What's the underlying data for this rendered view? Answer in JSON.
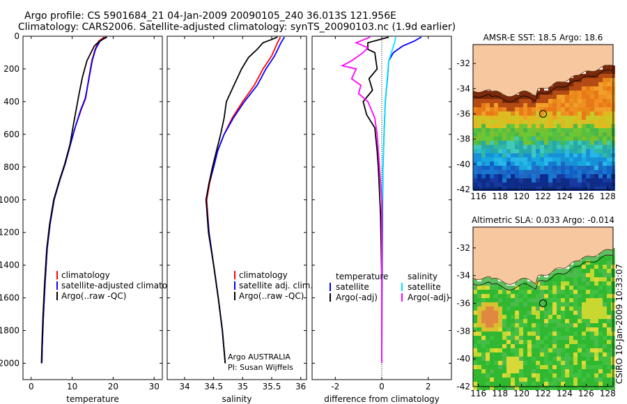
{
  "header": {
    "line1": "Argo profile: CS 5901684_21 04-Jan-2009 20090105_240 36.013S 121.956E",
    "line2": "Climatology: CARS2006. Satellite-adjusted climatology: synTS_20090103.nc (1.9d earlier)"
  },
  "colors": {
    "climatology": "#ff0000",
    "satellite": "#0000ff",
    "argo": "#000000",
    "satellite_sal_diff": "#00e5ff",
    "argo_sal_diff": "#ff00ff",
    "land": "#f7c8a0"
  },
  "chart_data": [
    {
      "type": "line",
      "panel": "temperature",
      "xlabel": "temperature",
      "xlim": [
        -2,
        32
      ],
      "ylim": [
        0,
        2100
      ],
      "y_reversed": true,
      "xticks": [
        "0",
        "10",
        "20",
        "30"
      ],
      "yticks": [
        "0",
        "200",
        "400",
        "600",
        "800",
        "1000",
        "1200",
        "1400",
        "1600",
        "1800",
        "2000"
      ],
      "legend_position": "lower-right",
      "series": [
        {
          "name": "climatology",
          "color": "#ff0000",
          "points": [
            [
              17.8,
              5
            ],
            [
              16.5,
              30
            ],
            [
              15.6,
              80
            ],
            [
              14.8,
              150
            ],
            [
              14.1,
              250
            ],
            [
              13.3,
              380
            ],
            [
              12.2,
              450
            ],
            [
              10.7,
              560
            ],
            [
              9.6,
              660
            ],
            [
              8.3,
              780
            ],
            [
              7.0,
              880
            ],
            [
              5.6,
              1000
            ],
            [
              4.6,
              1150
            ],
            [
              3.9,
              1300
            ],
            [
              3.4,
              1500
            ],
            [
              3.0,
              1700
            ],
            [
              2.7,
              1900
            ],
            [
              2.6,
              2000
            ]
          ]
        },
        {
          "name": "satellite-adjusted climatology",
          "color": "#0000ff",
          "points": [
            [
              18.2,
              5
            ],
            [
              16.8,
              30
            ],
            [
              15.7,
              80
            ],
            [
              14.9,
              150
            ],
            [
              14.1,
              260
            ],
            [
              13.2,
              380
            ],
            [
              12.1,
              450
            ],
            [
              10.7,
              560
            ],
            [
              9.6,
              660
            ],
            [
              8.3,
              780
            ],
            [
              7.0,
              880
            ],
            [
              5.6,
              1000
            ],
            [
              4.6,
              1150
            ],
            [
              3.9,
              1300
            ],
            [
              3.4,
              1500
            ],
            [
              3.0,
              1700
            ],
            [
              2.7,
              1900
            ],
            [
              2.6,
              2000
            ]
          ]
        },
        {
          "name": "Argo(..raw -QC)",
          "color": "#000000",
          "points": [
            [
              18.5,
              5
            ],
            [
              17.4,
              20
            ],
            [
              16.2,
              40
            ],
            [
              15.4,
              60
            ],
            [
              14.6,
              100
            ],
            [
              13.6,
              150
            ],
            [
              12.5,
              250
            ],
            [
              11.7,
              350
            ],
            [
              11.2,
              420
            ],
            [
              10.3,
              540
            ],
            [
              9.5,
              660
            ],
            [
              8.2,
              780
            ],
            [
              6.9,
              880
            ],
            [
              5.5,
              1000
            ],
            [
              4.5,
              1150
            ],
            [
              3.8,
              1300
            ],
            [
              3.3,
              1500
            ],
            [
              2.9,
              1700
            ],
            [
              2.6,
              1900
            ],
            [
              2.5,
              2000
            ]
          ]
        }
      ],
      "legend_labels": [
        "climatology",
        "satellite-adjusted climatology",
        "Argo(..raw -QC)"
      ]
    },
    {
      "type": "line",
      "panel": "salinity",
      "xlabel": "salinity",
      "xlim": [
        33.7,
        36.1
      ],
      "ylim": [
        0,
        2100
      ],
      "y_reversed": true,
      "xticks": [
        "34",
        "34.5",
        "35",
        "35.5",
        "36"
      ],
      "legend_position": "lower-right",
      "series": [
        {
          "name": "climatology",
          "color": "#ff0000",
          "points": [
            [
              35.65,
              5
            ],
            [
              35.6,
              40
            ],
            [
              35.5,
              120
            ],
            [
              35.35,
              200
            ],
            [
              35.2,
              300
            ],
            [
              35.0,
              400
            ],
            [
              34.82,
              500
            ],
            [
              34.68,
              600
            ],
            [
              34.57,
              700
            ],
            [
              34.5,
              800
            ],
            [
              34.43,
              900
            ],
            [
              34.38,
              1000
            ],
            [
              34.42,
              1200
            ],
            [
              34.5,
              1400
            ],
            [
              34.58,
              1600
            ],
            [
              34.65,
              1800
            ],
            [
              34.7,
              2000
            ]
          ]
        },
        {
          "name": "satellite adj. clim.",
          "color": "#0000ff",
          "points": [
            [
              35.72,
              5
            ],
            [
              35.66,
              40
            ],
            [
              35.55,
              120
            ],
            [
              35.4,
              200
            ],
            [
              35.25,
              300
            ],
            [
              35.03,
              400
            ],
            [
              34.84,
              500
            ],
            [
              34.68,
              600
            ],
            [
              34.57,
              700
            ],
            [
              34.5,
              800
            ],
            [
              34.42,
              900
            ],
            [
              34.37,
              1000
            ],
            [
              34.42,
              1200
            ],
            [
              34.5,
              1400
            ],
            [
              34.58,
              1600
            ],
            [
              34.65,
              1800
            ],
            [
              34.7,
              2000
            ]
          ]
        },
        {
          "name": "Argo(..raw -QC)",
          "color": "#000000",
          "points": [
            [
              35.6,
              5
            ],
            [
              35.5,
              20
            ],
            [
              35.35,
              40
            ],
            [
              35.25,
              80
            ],
            [
              35.1,
              130
            ],
            [
              34.98,
              200
            ],
            [
              34.85,
              300
            ],
            [
              34.72,
              400
            ],
            [
              34.68,
              500
            ],
            [
              34.62,
              600
            ],
            [
              34.55,
              700
            ],
            [
              34.48,
              800
            ],
            [
              34.42,
              900
            ],
            [
              34.37,
              1000
            ],
            [
              34.41,
              1200
            ],
            [
              34.5,
              1400
            ],
            [
              34.58,
              1600
            ],
            [
              34.65,
              1800
            ],
            [
              34.7,
              2000
            ]
          ]
        }
      ],
      "legend_labels": [
        "climatology",
        "satellite adj. clim.",
        "Argo(..raw -QC)"
      ],
      "annotation": [
        "Argo AUSTRALIA",
        "PI: Susan Wijffels"
      ]
    },
    {
      "type": "line",
      "panel": "difference",
      "xlabel": "difference from climatology",
      "xlim": [
        -3,
        3
      ],
      "ylim": [
        0,
        2100
      ],
      "y_reversed": true,
      "xticks": [
        "-2",
        "0",
        "2"
      ],
      "zero_line": "dotted",
      "legend_position": "lower",
      "series": [
        {
          "name": "temperature satellite",
          "color": "#0000ff",
          "points": [
            [
              1.7,
              5
            ],
            [
              1.4,
              30
            ],
            [
              0.9,
              60
            ],
            [
              0.5,
              100
            ],
            [
              0.3,
              150
            ],
            [
              0.25,
              250
            ],
            [
              0.15,
              400
            ],
            [
              0.1,
              600
            ],
            [
              0.05,
              800
            ],
            [
              0.02,
              1200
            ],
            [
              0.0,
              2000
            ]
          ]
        },
        {
          "name": "temperature Argo(-adj)",
          "color": "#000000",
          "points": [
            [
              0.3,
              5
            ],
            [
              -0.6,
              40
            ],
            [
              -0.6,
              80
            ],
            [
              -0.3,
              100
            ],
            [
              -0.2,
              200
            ],
            [
              -0.55,
              260
            ],
            [
              -0.4,
              330
            ],
            [
              -0.8,
              400
            ],
            [
              -0.65,
              480
            ],
            [
              -0.3,
              560
            ],
            [
              -0.2,
              700
            ],
            [
              -0.15,
              800
            ],
            [
              -0.1,
              950
            ],
            [
              -0.05,
              1100
            ],
            [
              0.0,
              1500
            ],
            [
              0.0,
              2000
            ]
          ]
        },
        {
          "name": "salinity satellite",
          "color": "#00e5ff",
          "points": [
            [
              0.6,
              5
            ],
            [
              0.55,
              40
            ],
            [
              0.3,
              150
            ],
            [
              0.15,
              400
            ],
            [
              0.05,
              800
            ],
            [
              0.0,
              1200
            ],
            [
              0.0,
              2000
            ]
          ]
        },
        {
          "name": "salinity Argo(-adj)",
          "color": "#ff00ff",
          "points": [
            [
              -0.5,
              5
            ],
            [
              -1.1,
              40
            ],
            [
              -0.6,
              70
            ],
            [
              -0.8,
              100
            ],
            [
              -1.3,
              150
            ],
            [
              -1.7,
              180
            ],
            [
              -1.1,
              200
            ],
            [
              -1.3,
              260
            ],
            [
              -0.9,
              300
            ],
            [
              -1.0,
              350
            ],
            [
              -0.6,
              400
            ],
            [
              -0.3,
              500
            ],
            [
              -0.2,
              600
            ],
            [
              -0.1,
              800
            ],
            [
              0.0,
              1000
            ],
            [
              0.0,
              2000
            ]
          ]
        }
      ],
      "legend_columns": [
        {
          "title": "temperature",
          "items": [
            "satellite",
            "Argo(-adj)"
          ]
        },
        {
          "title": "salinity",
          "items": [
            "satellite",
            "Argo(-adj)"
          ]
        }
      ]
    },
    {
      "type": "heatmap",
      "panel": "sst-map",
      "title": "AMSR-E SST: 18.5 Argo: 18.6",
      "xlim": [
        115.5,
        128.5
      ],
      "ylim": [
        -42,
        -30.5
      ],
      "xticks": [
        "116",
        "118",
        "120",
        "122",
        "124",
        "126",
        "128"
      ],
      "yticks": [
        "-32",
        "-34",
        "-36",
        "-38",
        "-40",
        "-42"
      ],
      "float_position": [
        122.0,
        -36.0
      ]
    },
    {
      "type": "heatmap",
      "panel": "sla-map",
      "title": "Altimetric SLA: 0.033 Argo: -0.014",
      "xlim": [
        115.5,
        128.5
      ],
      "ylim": [
        -42,
        -30.5
      ],
      "xticks": [
        "116",
        "118",
        "120",
        "122",
        "124",
        "126",
        "128"
      ],
      "yticks": [
        "-32",
        "-34",
        "-36",
        "-38",
        "-40",
        "-42"
      ],
      "float_position": [
        122.0,
        -36.0
      ]
    }
  ],
  "side_label": "CSIRO 10-Jan-2009 10:33:07"
}
